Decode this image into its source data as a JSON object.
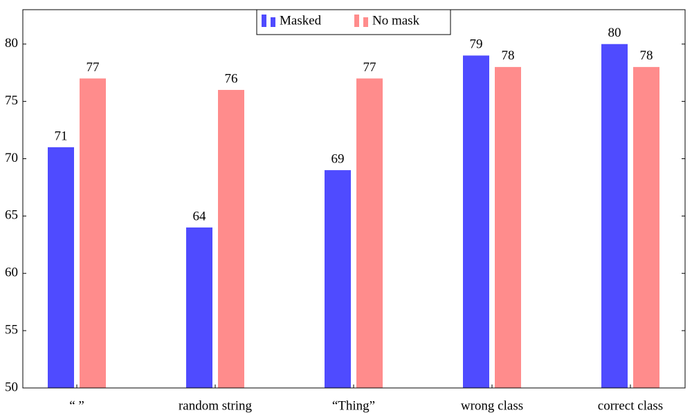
{
  "chart_data": {
    "type": "bar",
    "categories": [
      "“ ”",
      "random string",
      "“Thing”",
      "wrong class",
      "correct class"
    ],
    "series": [
      {
        "name": "Masked",
        "color": "#4f4bff",
        "values": [
          71,
          64,
          69,
          79,
          80
        ]
      },
      {
        "name": "No mask",
        "color": "#ff8c8c",
        "values": [
          77,
          76,
          77,
          78,
          78
        ]
      }
    ],
    "ylim": [
      50,
      83
    ],
    "yticks": [
      50,
      55,
      60,
      65,
      70,
      75,
      80
    ],
    "legend": "top-center",
    "grid": false
  }
}
